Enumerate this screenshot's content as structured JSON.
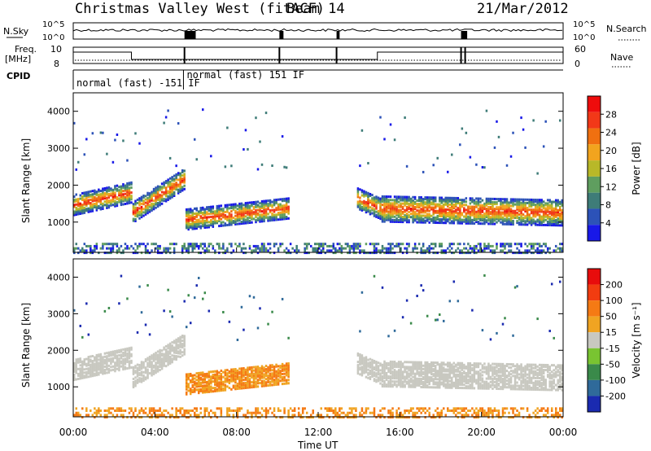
{
  "header": {
    "title": "Christmas Valley West (fitACF)",
    "beam": "Beam 14",
    "date": "21/Mar/2012"
  },
  "status_panel": {
    "nsky_label": "N.Sky",
    "nsky_ticks": [
      "10^5",
      "10^0"
    ],
    "nsearch_label": "N.Search",
    "nsearch_ticks": [
      "10^5",
      "10^0"
    ],
    "freq_label_1": "Freq.",
    "freq_label_2": "[MHz]",
    "freq_ticks": [
      "10",
      "8"
    ],
    "nave_label": "Nave",
    "nave_ticks": [
      "60",
      "0"
    ],
    "cpid_label": "CPID",
    "cpid_segments": [
      {
        "label": "normal (fast) -151 IF",
        "start_h": 0.0,
        "end_h": 5.4
      },
      {
        "label": "normal (fast) 151 IF",
        "start_h": 5.4,
        "end_h": 24.0
      }
    ]
  },
  "chart_data": [
    {
      "type": "heatmap",
      "name": "power",
      "xlabel": "Time UT",
      "ylabel": "Slant Range [km]",
      "xlim": [
        0,
        24
      ],
      "ylim": [
        180,
        4500
      ],
      "xticks": [
        "00:00",
        "04:00",
        "08:00",
        "12:00",
        "16:00",
        "20:00",
        "00:00"
      ],
      "yticks": [
        1000,
        2000,
        3000,
        4000
      ],
      "colorbar": {
        "label": "Power [dB]",
        "ticks": [
          "4",
          "8",
          "12",
          "16",
          "20",
          "24",
          "28"
        ],
        "colors": [
          "#1818e8",
          "#2c52b8",
          "#3e7c78",
          "#5f9e5f",
          "#b8b828",
          "#f2a41e",
          "#f07010",
          "#f23818",
          "#ee0c0c"
        ]
      }
    },
    {
      "type": "heatmap",
      "name": "velocity",
      "xlabel": "Time UT",
      "ylabel": "Slant Range [km]",
      "xlim": [
        0,
        24
      ],
      "ylim": [
        180,
        4500
      ],
      "xticks": [
        "00:00",
        "04:00",
        "08:00",
        "12:00",
        "16:00",
        "20:00",
        "00:00"
      ],
      "yticks": [
        1000,
        2000,
        3000,
        4000
      ],
      "colorbar": {
        "label": "Velocity [m s⁻¹]",
        "ticks": [
          "200",
          "100",
          "50",
          "15",
          "-15",
          "-50",
          "-100",
          "-200"
        ],
        "colors": [
          "#1a2ab0",
          "#2f6a9a",
          "#3a8a4a",
          "#79c431",
          "#c8c8c0",
          "#f0a422",
          "#f57a14",
          "#f23c10",
          "#e80c0c"
        ]
      }
    }
  ]
}
